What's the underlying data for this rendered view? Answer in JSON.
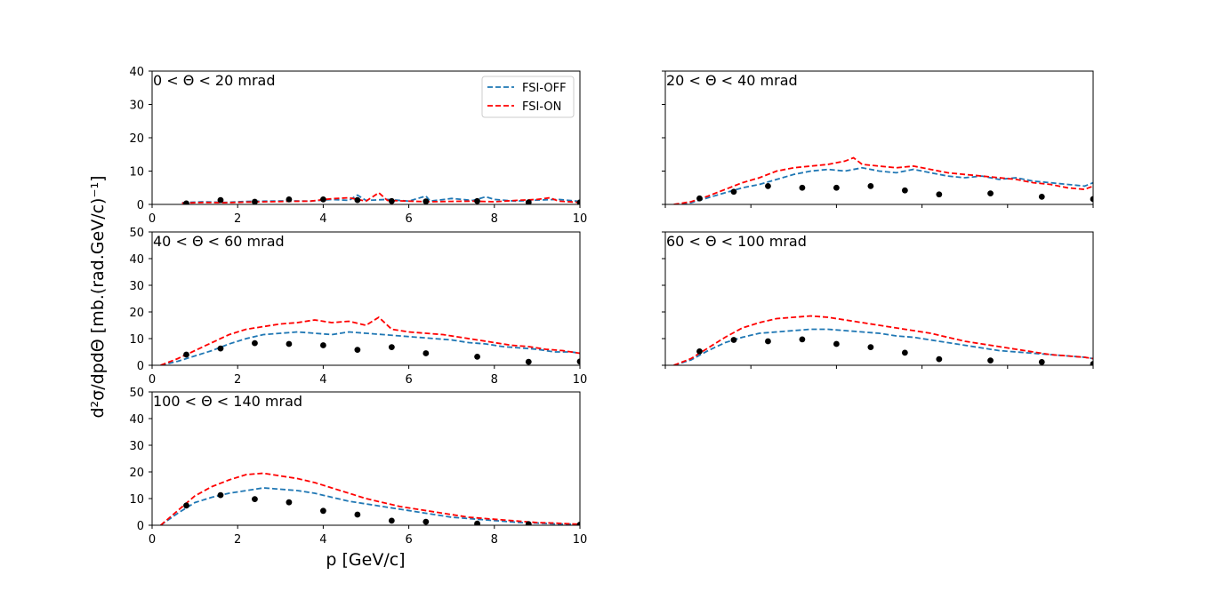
{
  "figure": {
    "xlabel": "p [GeV/c]",
    "ylabel": "d²σ/dpdΘ [mb.(rad.GeV/c)⁻¹]",
    "legend": [
      {
        "label": "FSI-OFF",
        "color": "#1f77b4"
      },
      {
        "label": "FSI-ON",
        "color": "#ff0000"
      }
    ]
  },
  "chart_data": [
    {
      "type": "line",
      "title": "0 < Θ < 20 mrad",
      "xlim": [
        0,
        10
      ],
      "ylim": [
        0,
        40
      ],
      "yticks": [
        "0",
        "10",
        "20",
        "30",
        "40"
      ],
      "xticks": [
        "0",
        "2",
        "4",
        "6",
        "8",
        "10"
      ],
      "data_points": {
        "x": [
          0.8,
          1.6,
          2.4,
          3.2,
          4.0,
          4.8,
          5.6,
          6.4,
          7.6,
          8.8,
          10.0
        ],
        "y": [
          0.3,
          1.3,
          0.8,
          1.5,
          1.5,
          1.3,
          1.0,
          0.9,
          1.0,
          0.6,
          0.6
        ]
      },
      "series": [
        {
          "name": "FSI-OFF",
          "x": [
            0.7,
            1.2,
            1.7,
            2.2,
            2.7,
            3.2,
            3.7,
            4.2,
            4.6,
            4.8,
            5.0,
            5.5,
            6.0,
            6.4,
            6.5,
            7.0,
            7.5,
            7.8,
            8.0,
            8.5,
            9.0,
            9.5,
            10.0
          ],
          "y": [
            0.5,
            0.8,
            0.6,
            0.9,
            1.0,
            1.1,
            1.0,
            1.5,
            1.2,
            2.8,
            1.2,
            1.5,
            1.0,
            2.5,
            1.0,
            1.8,
            1.2,
            2.3,
            1.5,
            1.0,
            1.3,
            1.5,
            0.9
          ]
        },
        {
          "name": "FSI-ON",
          "x": [
            0.7,
            1.2,
            1.7,
            2.2,
            2.7,
            3.2,
            3.7,
            4.2,
            4.6,
            5.0,
            5.3,
            5.5,
            6.0,
            6.5,
            7.0,
            7.5,
            8.0,
            8.5,
            9.0,
            9.3,
            9.5,
            10.0
          ],
          "y": [
            0.4,
            0.6,
            0.5,
            0.7,
            0.8,
            0.9,
            1.0,
            1.7,
            2.0,
            1.0,
            3.5,
            1.2,
            1.0,
            0.8,
            0.9,
            1.0,
            0.8,
            1.2,
            1.5,
            2.0,
            1.0,
            0.6
          ]
        }
      ]
    },
    {
      "type": "line",
      "title": "20 < Θ < 40 mrad",
      "xlim": [
        0,
        10
      ],
      "ylim": [
        0,
        40
      ],
      "yticks": [],
      "xticks": [],
      "data_points": {
        "x": [
          0.8,
          1.6,
          2.4,
          3.2,
          4.0,
          4.8,
          5.6,
          6.4,
          7.6,
          8.8,
          10.0
        ],
        "y": [
          1.8,
          3.8,
          5.5,
          5.0,
          5.0,
          5.5,
          4.2,
          3.0,
          3.3,
          2.3,
          1.6
        ]
      },
      "series": [
        {
          "name": "FSI-OFF",
          "x": [
            0.2,
            0.6,
            1.0,
            1.4,
            1.8,
            2.2,
            2.6,
            3.0,
            3.4,
            3.8,
            4.2,
            4.6,
            5.0,
            5.4,
            5.8,
            6.2,
            6.6,
            7.0,
            7.4,
            7.8,
            8.2,
            8.6,
            9.0,
            9.4,
            9.8,
            10.0
          ],
          "y": [
            0.0,
            0.5,
            2.0,
            3.5,
            5.0,
            6.0,
            7.5,
            9.0,
            10.0,
            10.5,
            10.0,
            11.0,
            10.0,
            9.5,
            10.5,
            9.5,
            8.5,
            8.0,
            8.5,
            7.5,
            8.0,
            7.0,
            6.5,
            6.0,
            5.5,
            6.5
          ]
        },
        {
          "name": "FSI-ON",
          "x": [
            0.2,
            0.6,
            1.0,
            1.4,
            1.8,
            2.2,
            2.6,
            3.0,
            3.4,
            3.8,
            4.2,
            4.4,
            4.6,
            5.0,
            5.4,
            5.8,
            6.2,
            6.6,
            7.0,
            7.4,
            7.8,
            8.2,
            8.6,
            9.0,
            9.4,
            9.8,
            10.0
          ],
          "y": [
            0.0,
            0.8,
            2.5,
            4.5,
            6.5,
            8.0,
            10.0,
            11.0,
            11.5,
            12.0,
            13.0,
            14.0,
            12.0,
            11.5,
            11.0,
            11.5,
            10.5,
            9.5,
            9.0,
            8.5,
            8.0,
            7.5,
            6.5,
            6.0,
            5.0,
            4.5,
            5.5
          ]
        }
      ]
    },
    {
      "type": "line",
      "title": "40 < Θ < 60 mrad",
      "xlim": [
        0,
        10
      ],
      "ylim": [
        0,
        50
      ],
      "yticks": [
        "0",
        "10",
        "20",
        "30",
        "40",
        "50"
      ],
      "xticks": [
        "0",
        "2",
        "4",
        "6",
        "8",
        "10"
      ],
      "data_points": {
        "x": [
          0.8,
          1.6,
          2.4,
          3.2,
          4.0,
          4.8,
          5.6,
          6.4,
          7.6,
          8.8,
          10.0
        ],
        "y": [
          4.0,
          6.3,
          8.3,
          8.0,
          7.5,
          5.8,
          6.8,
          4.5,
          3.2,
          1.3,
          1.4
        ]
      },
      "series": [
        {
          "name": "FSI-OFF",
          "x": [
            0.2,
            0.6,
            1.0,
            1.4,
            1.8,
            2.2,
            2.6,
            3.0,
            3.4,
            3.8,
            4.2,
            4.6,
            5.0,
            5.4,
            5.8,
            6.2,
            6.6,
            7.0,
            7.4,
            7.8,
            8.2,
            8.6,
            9.0,
            9.4,
            9.8,
            10.0
          ],
          "y": [
            0.0,
            1.5,
            3.5,
            5.5,
            8.0,
            10.0,
            11.5,
            12.0,
            12.5,
            12.0,
            11.5,
            12.5,
            12.0,
            11.5,
            11.0,
            10.5,
            10.0,
            9.5,
            8.5,
            8.0,
            7.0,
            6.5,
            6.0,
            5.0,
            5.0,
            4.5
          ]
        },
        {
          "name": "FSI-ON",
          "x": [
            0.2,
            0.6,
            1.0,
            1.4,
            1.8,
            2.2,
            2.6,
            3.0,
            3.4,
            3.8,
            4.2,
            4.6,
            5.0,
            5.3,
            5.6,
            6.0,
            6.4,
            6.8,
            7.2,
            7.6,
            8.0,
            8.4,
            8.8,
            9.2,
            9.6,
            10.0
          ],
          "y": [
            0.0,
            2.5,
            5.5,
            8.5,
            11.5,
            13.5,
            14.5,
            15.5,
            16.0,
            17.0,
            16.0,
            16.5,
            15.0,
            18.0,
            13.5,
            12.5,
            12.0,
            11.5,
            10.5,
            9.5,
            8.5,
            7.5,
            7.0,
            6.0,
            5.5,
            4.5
          ]
        }
      ]
    },
    {
      "type": "line",
      "title": "60 < Θ < 100 mrad",
      "xlim": [
        0,
        10
      ],
      "ylim": [
        0,
        50
      ],
      "yticks": [],
      "xticks": [],
      "data_points": {
        "x": [
          0.8,
          1.6,
          2.4,
          3.2,
          4.0,
          4.8,
          5.6,
          6.4,
          7.6,
          8.8,
          10.0
        ],
        "y": [
          5.2,
          9.5,
          9.0,
          9.7,
          8.0,
          6.8,
          4.7,
          2.3,
          1.8,
          1.2,
          0.5
        ]
      },
      "series": [
        {
          "name": "FSI-OFF",
          "x": [
            0.2,
            0.6,
            1.0,
            1.4,
            1.8,
            2.2,
            2.6,
            3.0,
            3.4,
            3.8,
            4.2,
            4.6,
            5.0,
            5.4,
            5.8,
            6.2,
            6.6,
            7.0,
            7.4,
            7.8,
            8.2,
            8.6,
            9.0,
            9.4,
            9.8,
            10.0
          ],
          "y": [
            0.0,
            2.0,
            5.5,
            8.5,
            10.5,
            12.0,
            12.5,
            13.0,
            13.5,
            13.5,
            13.0,
            12.5,
            12.0,
            11.0,
            10.5,
            9.5,
            8.5,
            7.5,
            6.5,
            5.5,
            5.0,
            4.5,
            4.0,
            3.5,
            3.0,
            2.5
          ]
        },
        {
          "name": "FSI-ON",
          "x": [
            0.2,
            0.6,
            1.0,
            1.4,
            1.8,
            2.2,
            2.6,
            3.0,
            3.4,
            3.8,
            4.2,
            4.6,
            5.0,
            5.4,
            5.8,
            6.2,
            6.6,
            7.0,
            7.4,
            7.8,
            8.2,
            8.6,
            9.0,
            9.4,
            9.8,
            10.0
          ],
          "y": [
            0.0,
            2.5,
            6.5,
            10.5,
            14.0,
            16.0,
            17.5,
            18.0,
            18.5,
            18.0,
            17.0,
            16.0,
            15.0,
            14.0,
            13.0,
            12.0,
            10.5,
            9.0,
            8.0,
            7.0,
            6.0,
            5.0,
            4.0,
            3.5,
            3.0,
            2.5
          ]
        }
      ]
    },
    {
      "type": "line",
      "title": "100 < Θ < 140 mrad",
      "xlim": [
        0,
        10
      ],
      "ylim": [
        0,
        50
      ],
      "yticks": [
        "0",
        "10",
        "20",
        "30",
        "40",
        "50"
      ],
      "xticks": [
        "0",
        "2",
        "4",
        "6",
        "8",
        "10"
      ],
      "data_points": {
        "x": [
          0.8,
          1.6,
          2.4,
          3.2,
          4.0,
          4.8,
          5.6,
          6.4,
          7.6,
          8.8,
          10.0
        ],
        "y": [
          7.4,
          11.3,
          9.8,
          8.6,
          5.4,
          4.0,
          1.7,
          1.3,
          0.6,
          0.4,
          0.2
        ]
      },
      "series": [
        {
          "name": "FSI-OFF",
          "x": [
            0.2,
            0.6,
            1.0,
            1.4,
            1.8,
            2.2,
            2.6,
            3.0,
            3.4,
            3.8,
            4.2,
            4.6,
            5.0,
            5.4,
            5.8,
            6.2,
            6.6,
            7.0,
            7.4,
            7.8,
            8.2,
            8.6,
            9.0,
            9.4,
            9.8,
            10.0
          ],
          "y": [
            0.0,
            4.5,
            8.5,
            10.5,
            12.0,
            13.0,
            14.0,
            13.5,
            13.0,
            12.0,
            10.5,
            9.0,
            8.0,
            7.0,
            6.0,
            5.0,
            4.0,
            3.0,
            2.5,
            2.0,
            1.5,
            1.0,
            0.8,
            0.5,
            0.4,
            0.3
          ]
        },
        {
          "name": "FSI-ON",
          "x": [
            0.2,
            0.6,
            1.0,
            1.4,
            1.8,
            2.2,
            2.6,
            3.0,
            3.4,
            3.8,
            4.2,
            4.6,
            5.0,
            5.4,
            5.8,
            6.2,
            6.6,
            7.0,
            7.4,
            7.8,
            8.2,
            8.6,
            9.0,
            9.4,
            9.8,
            10.0
          ],
          "y": [
            0.0,
            5.5,
            11.0,
            14.5,
            17.0,
            19.0,
            19.5,
            18.5,
            17.5,
            16.0,
            14.0,
            12.0,
            10.0,
            8.5,
            7.0,
            6.0,
            5.0,
            4.0,
            3.0,
            2.5,
            2.0,
            1.5,
            1.0,
            0.8,
            0.5,
            0.4
          ]
        }
      ]
    }
  ]
}
